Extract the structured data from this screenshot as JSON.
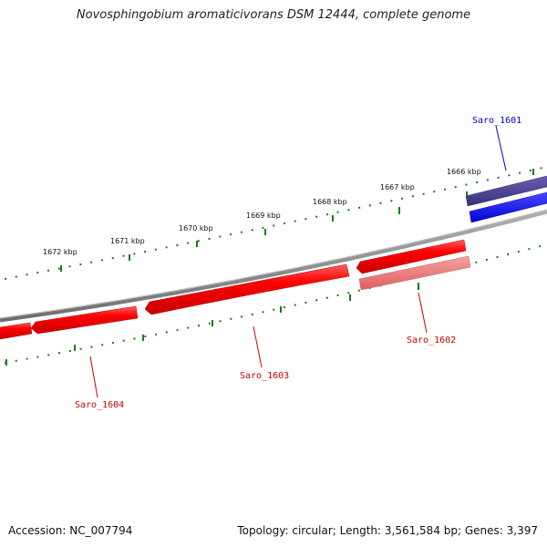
{
  "title": "Novosphingobium aromaticivorans DSM 12444, complete genome",
  "accession_text": "Accession: NC_007794",
  "topology_text": "Topology: circular; Length: 3,561,584 bp; Genes: 3,397",
  "scale_labels": [
    "1666 kbp",
    "1667 kbp",
    "1668 kbp",
    "1669 kbp",
    "1670 kbp",
    "1671 kbp",
    "1672 kbp"
  ],
  "genes": [
    {
      "name": "Saro_1601",
      "strand": "forward",
      "color": "#0000cc"
    },
    {
      "name": "Saro_1602",
      "strand": "reverse",
      "color": "#cc0000"
    },
    {
      "name": "Saro_1603",
      "strand": "reverse",
      "color": "#cc0000"
    },
    {
      "name": "Saro_1604",
      "strand": "reverse",
      "color": "#cc0000"
    }
  ],
  "colors": {
    "backbone": "#808080",
    "forward_gene": "#0000ff",
    "reverse_gene": "#ff0000",
    "reverse_gene_light": "#f08080",
    "forward_gene_dark": "#4b3f8c",
    "tick": "#1a7a1a",
    "forward_label": "#0000cc",
    "reverse_label": "#cc0000"
  }
}
